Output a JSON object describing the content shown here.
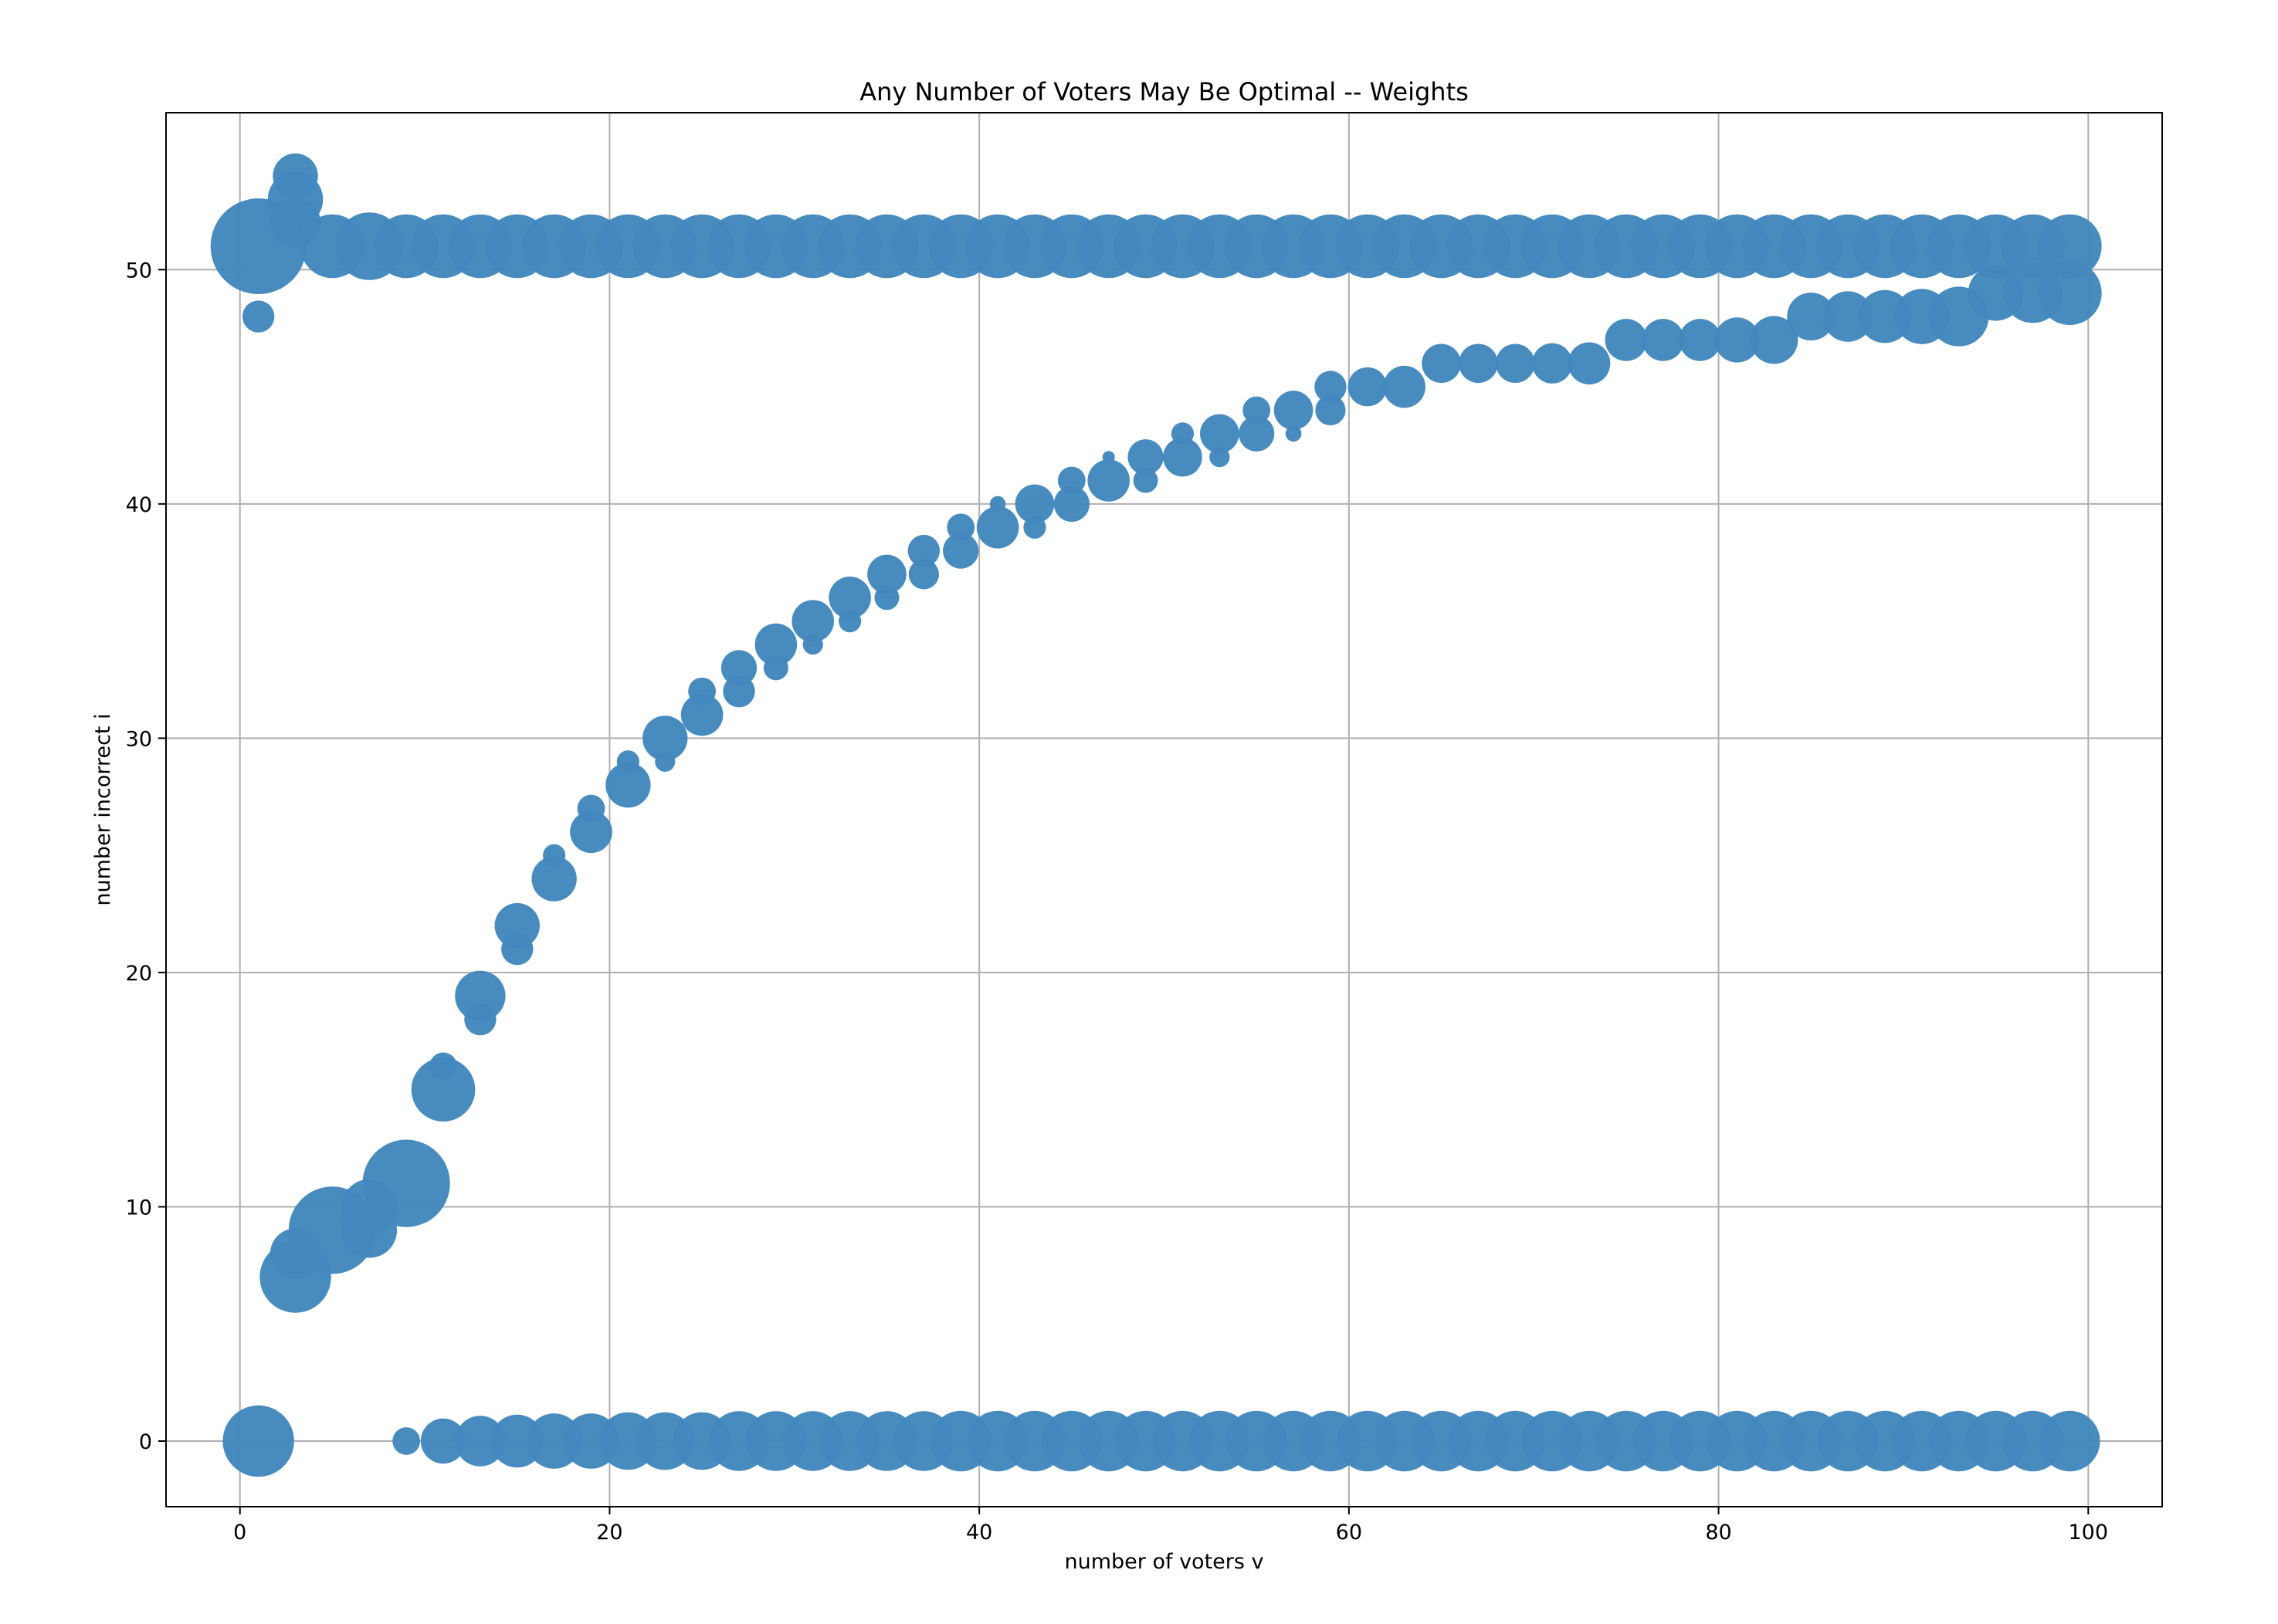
{
  "chart_data": {
    "type": "scatter",
    "title": "Any Number of Voters May Be Optimal -- Weights",
    "xlabel": "number of voters v",
    "ylabel": "number incorrect i",
    "xlim": [
      -4,
      104
    ],
    "ylim": [
      -2.8,
      56.7
    ],
    "xticks": [
      0,
      20,
      40,
      60,
      80,
      100
    ],
    "yticks": [
      0,
      10,
      20,
      30,
      40,
      50
    ],
    "grid": true,
    "marker_color": "#4287bd",
    "size_note": "marker area encodes weight",
    "series": [
      {
        "points": [
          {
            "v": 1,
            "i": 51,
            "w": 1.8
          },
          {
            "v": 1,
            "i": 48,
            "w": 0.2
          },
          {
            "v": 1,
            "i": 0,
            "w": 1.0
          },
          {
            "v": 3,
            "i": 54,
            "w": 0.4
          },
          {
            "v": 3,
            "i": 53,
            "w": 0.6
          },
          {
            "v": 3,
            "i": 52,
            "w": 0.5
          },
          {
            "v": 3,
            "i": 8,
            "w": 0.5
          },
          {
            "v": 3,
            "i": 7,
            "w": 1.0
          },
          {
            "v": 5,
            "i": 51,
            "w": 0.8
          },
          {
            "v": 5,
            "i": 9,
            "w": 1.5
          },
          {
            "v": 7,
            "i": 51,
            "w": 0.9
          },
          {
            "v": 7,
            "i": 10,
            "w": 0.6
          },
          {
            "v": 7,
            "i": 9,
            "w": 0.6
          },
          {
            "v": 9,
            "i": 51,
            "w": 0.8
          },
          {
            "v": 9,
            "i": 11,
            "w": 1.5
          },
          {
            "v": 9,
            "i": 0,
            "w": 0.15
          },
          {
            "v": 11,
            "i": 51,
            "w": 0.8
          },
          {
            "v": 11,
            "i": 16,
            "w": 0.15
          },
          {
            "v": 11,
            "i": 15,
            "w": 0.8
          },
          {
            "v": 11,
            "i": 0,
            "w": 0.4
          },
          {
            "v": 13,
            "i": 51,
            "w": 0.8
          },
          {
            "v": 13,
            "i": 19,
            "w": 0.5
          },
          {
            "v": 13,
            "i": 18,
            "w": 0.2
          },
          {
            "v": 13,
            "i": 0,
            "w": 0.5
          },
          {
            "v": 15,
            "i": 51,
            "w": 0.8
          },
          {
            "v": 15,
            "i": 22,
            "w": 0.4
          },
          {
            "v": 15,
            "i": 21,
            "w": 0.2
          },
          {
            "v": 15,
            "i": 0,
            "w": 0.55
          },
          {
            "v": 17,
            "i": 51,
            "w": 0.8
          },
          {
            "v": 17,
            "i": 25,
            "w": 0.1
          },
          {
            "v": 17,
            "i": 24,
            "w": 0.4
          },
          {
            "v": 17,
            "i": 0,
            "w": 0.6
          },
          {
            "v": 19,
            "i": 51,
            "w": 0.8
          },
          {
            "v": 19,
            "i": 27,
            "w": 0.15
          },
          {
            "v": 19,
            "i": 26,
            "w": 0.35
          },
          {
            "v": 19,
            "i": 0,
            "w": 0.6
          },
          {
            "v": 21,
            "i": 51,
            "w": 0.8
          },
          {
            "v": 21,
            "i": 29,
            "w": 0.1
          },
          {
            "v": 21,
            "i": 28,
            "w": 0.4
          },
          {
            "v": 21,
            "i": 0,
            "w": 0.65
          },
          {
            "v": 23,
            "i": 51,
            "w": 0.8
          },
          {
            "v": 23,
            "i": 30,
            "w": 0.4
          },
          {
            "v": 23,
            "i": 29,
            "w": 0.08
          },
          {
            "v": 23,
            "i": 0,
            "w": 0.65
          },
          {
            "v": 25,
            "i": 51,
            "w": 0.8
          },
          {
            "v": 25,
            "i": 32,
            "w": 0.15
          },
          {
            "v": 25,
            "i": 31,
            "w": 0.35
          },
          {
            "v": 25,
            "i": 0,
            "w": 0.65
          },
          {
            "v": 27,
            "i": 51,
            "w": 0.8
          },
          {
            "v": 27,
            "i": 33,
            "w": 0.25
          },
          {
            "v": 27,
            "i": 32,
            "w": 0.2
          },
          {
            "v": 27,
            "i": 0,
            "w": 0.7
          },
          {
            "v": 29,
            "i": 51,
            "w": 0.8
          },
          {
            "v": 29,
            "i": 34,
            "w": 0.35
          },
          {
            "v": 29,
            "i": 33,
            "w": 0.12
          },
          {
            "v": 29,
            "i": 0,
            "w": 0.7
          },
          {
            "v": 31,
            "i": 51,
            "w": 0.8
          },
          {
            "v": 31,
            "i": 35,
            "w": 0.35
          },
          {
            "v": 31,
            "i": 34,
            "w": 0.08
          },
          {
            "v": 31,
            "i": 0,
            "w": 0.7
          },
          {
            "v": 33,
            "i": 51,
            "w": 0.8
          },
          {
            "v": 33,
            "i": 36,
            "w": 0.35
          },
          {
            "v": 33,
            "i": 35,
            "w": 0.1
          },
          {
            "v": 33,
            "i": 0,
            "w": 0.7
          },
          {
            "v": 35,
            "i": 51,
            "w": 0.8
          },
          {
            "v": 35,
            "i": 37,
            "w": 0.3
          },
          {
            "v": 35,
            "i": 36,
            "w": 0.12
          },
          {
            "v": 35,
            "i": 0,
            "w": 0.7
          },
          {
            "v": 37,
            "i": 51,
            "w": 0.8
          },
          {
            "v": 37,
            "i": 38,
            "w": 0.2
          },
          {
            "v": 37,
            "i": 37,
            "w": 0.18
          },
          {
            "v": 37,
            "i": 0,
            "w": 0.7
          },
          {
            "v": 39,
            "i": 51,
            "w": 0.8
          },
          {
            "v": 39,
            "i": 39,
            "w": 0.15
          },
          {
            "v": 39,
            "i": 38,
            "w": 0.25
          },
          {
            "v": 39,
            "i": 0,
            "w": 0.72
          },
          {
            "v": 41,
            "i": 51,
            "w": 0.8
          },
          {
            "v": 41,
            "i": 40,
            "w": 0.05
          },
          {
            "v": 41,
            "i": 39,
            "w": 0.35
          },
          {
            "v": 41,
            "i": 0,
            "w": 0.72
          },
          {
            "v": 43,
            "i": 51,
            "w": 0.8
          },
          {
            "v": 43,
            "i": 40,
            "w": 0.3
          },
          {
            "v": 43,
            "i": 39,
            "w": 0.1
          },
          {
            "v": 43,
            "i": 0,
            "w": 0.72
          },
          {
            "v": 45,
            "i": 51,
            "w": 0.8
          },
          {
            "v": 45,
            "i": 41,
            "w": 0.15
          },
          {
            "v": 45,
            "i": 40,
            "w": 0.25
          },
          {
            "v": 45,
            "i": 0,
            "w": 0.72
          },
          {
            "v": 47,
            "i": 51,
            "w": 0.8
          },
          {
            "v": 47,
            "i": 42,
            "w": 0.03
          },
          {
            "v": 47,
            "i": 41,
            "w": 0.35
          },
          {
            "v": 47,
            "i": 0,
            "w": 0.72
          },
          {
            "v": 49,
            "i": 51,
            "w": 0.8
          },
          {
            "v": 49,
            "i": 42,
            "w": 0.25
          },
          {
            "v": 49,
            "i": 41,
            "w": 0.12
          },
          {
            "v": 49,
            "i": 0,
            "w": 0.72
          },
          {
            "v": 51,
            "i": 51,
            "w": 0.8
          },
          {
            "v": 51,
            "i": 43,
            "w": 0.1
          },
          {
            "v": 51,
            "i": 42,
            "w": 0.3
          },
          {
            "v": 51,
            "i": 0,
            "w": 0.72
          },
          {
            "v": 53,
            "i": 51,
            "w": 0.8
          },
          {
            "v": 53,
            "i": 43,
            "w": 0.3
          },
          {
            "v": 53,
            "i": 42,
            "w": 0.08
          },
          {
            "v": 53,
            "i": 0,
            "w": 0.72
          },
          {
            "v": 55,
            "i": 51,
            "w": 0.8
          },
          {
            "v": 55,
            "i": 44,
            "w": 0.15
          },
          {
            "v": 55,
            "i": 43,
            "w": 0.25
          },
          {
            "v": 55,
            "i": 0,
            "w": 0.72
          },
          {
            "v": 57,
            "i": 51,
            "w": 0.8
          },
          {
            "v": 57,
            "i": 44,
            "w": 0.3
          },
          {
            "v": 57,
            "i": 43,
            "w": 0.05
          },
          {
            "v": 57,
            "i": 0,
            "w": 0.72
          },
          {
            "v": 59,
            "i": 51,
            "w": 0.8
          },
          {
            "v": 59,
            "i": 45,
            "w": 0.2
          },
          {
            "v": 59,
            "i": 44,
            "w": 0.18
          },
          {
            "v": 59,
            "i": 0,
            "w": 0.72
          },
          {
            "v": 61,
            "i": 51,
            "w": 0.8
          },
          {
            "v": 61,
            "i": 45,
            "w": 0.3
          },
          {
            "v": 61,
            "i": 0,
            "w": 0.72
          },
          {
            "v": 63,
            "i": 51,
            "w": 0.8
          },
          {
            "v": 63,
            "i": 45,
            "w": 0.35
          },
          {
            "v": 63,
            "i": 0,
            "w": 0.72
          },
          {
            "v": 65,
            "i": 51,
            "w": 0.8
          },
          {
            "v": 65,
            "i": 46,
            "w": 0.3
          },
          {
            "v": 65,
            "i": 0,
            "w": 0.72
          },
          {
            "v": 67,
            "i": 51,
            "w": 0.8
          },
          {
            "v": 67,
            "i": 46,
            "w": 0.3
          },
          {
            "v": 67,
            "i": 0,
            "w": 0.72
          },
          {
            "v": 69,
            "i": 51,
            "w": 0.8
          },
          {
            "v": 69,
            "i": 46,
            "w": 0.3
          },
          {
            "v": 69,
            "i": 0,
            "w": 0.72
          },
          {
            "v": 71,
            "i": 51,
            "w": 0.8
          },
          {
            "v": 71,
            "i": 46,
            "w": 0.32
          },
          {
            "v": 71,
            "i": 0,
            "w": 0.72
          },
          {
            "v": 73,
            "i": 51,
            "w": 0.8
          },
          {
            "v": 73,
            "i": 46,
            "w": 0.35
          },
          {
            "v": 73,
            "i": 0,
            "w": 0.72
          },
          {
            "v": 75,
            "i": 51,
            "w": 0.8
          },
          {
            "v": 75,
            "i": 47,
            "w": 0.35
          },
          {
            "v": 75,
            "i": 0,
            "w": 0.72
          },
          {
            "v": 77,
            "i": 51,
            "w": 0.8
          },
          {
            "v": 77,
            "i": 47,
            "w": 0.35
          },
          {
            "v": 77,
            "i": 0,
            "w": 0.72
          },
          {
            "v": 79,
            "i": 51,
            "w": 0.8
          },
          {
            "v": 79,
            "i": 47,
            "w": 0.35
          },
          {
            "v": 79,
            "i": 0,
            "w": 0.72
          },
          {
            "v": 81,
            "i": 51,
            "w": 0.8
          },
          {
            "v": 81,
            "i": 47,
            "w": 0.4
          },
          {
            "v": 81,
            "i": 0,
            "w": 0.72
          },
          {
            "v": 83,
            "i": 51,
            "w": 0.8
          },
          {
            "v": 83,
            "i": 47,
            "w": 0.45
          },
          {
            "v": 83,
            "i": 0,
            "w": 0.72
          },
          {
            "v": 85,
            "i": 51,
            "w": 0.8
          },
          {
            "v": 85,
            "i": 48,
            "w": 0.45
          },
          {
            "v": 85,
            "i": 0,
            "w": 0.72
          },
          {
            "v": 87,
            "i": 51,
            "w": 0.8
          },
          {
            "v": 87,
            "i": 48,
            "w": 0.5
          },
          {
            "v": 87,
            "i": 0,
            "w": 0.72
          },
          {
            "v": 89,
            "i": 51,
            "w": 0.8
          },
          {
            "v": 89,
            "i": 48,
            "w": 0.55
          },
          {
            "v": 89,
            "i": 0,
            "w": 0.72
          },
          {
            "v": 91,
            "i": 51,
            "w": 0.8
          },
          {
            "v": 91,
            "i": 48,
            "w": 0.6
          },
          {
            "v": 91,
            "i": 0,
            "w": 0.72
          },
          {
            "v": 93,
            "i": 51,
            "w": 0.8
          },
          {
            "v": 93,
            "i": 48,
            "w": 0.7
          },
          {
            "v": 93,
            "i": 0,
            "w": 0.72
          },
          {
            "v": 95,
            "i": 51,
            "w": 0.8
          },
          {
            "v": 95,
            "i": 49,
            "w": 0.6
          },
          {
            "v": 95,
            "i": 0,
            "w": 0.72
          },
          {
            "v": 97,
            "i": 51,
            "w": 0.8
          },
          {
            "v": 97,
            "i": 49,
            "w": 0.7
          },
          {
            "v": 97,
            "i": 0,
            "w": 0.72
          },
          {
            "v": 99,
            "i": 51,
            "w": 0.8
          },
          {
            "v": 99,
            "i": 49,
            "w": 0.8
          },
          {
            "v": 99,
            "i": 0,
            "w": 0.72
          }
        ]
      }
    ]
  }
}
